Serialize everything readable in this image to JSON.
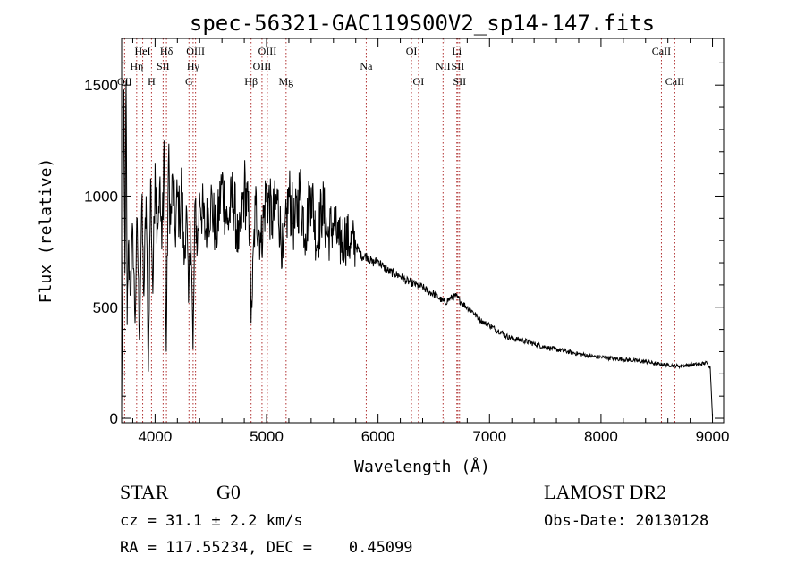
{
  "chart_data": {
    "type": "line",
    "title": "spec-56321-GAC119S00V2_sp14-147.fits",
    "xlabel": "Wavelength (Å)",
    "ylabel": "Flux (relative)",
    "xlim": [
      3700,
      9100
    ],
    "ylim": [
      -20,
      1710
    ],
    "x_ticks": [
      4000,
      5000,
      6000,
      7000,
      8000,
      9000
    ],
    "x_tick_labels": [
      "4000",
      "5000",
      "6000",
      "7000",
      "8000",
      "9000"
    ],
    "y_ticks": [
      0,
      500,
      1000,
      1500
    ],
    "y_tick_labels": [
      "0",
      "500",
      "1000",
      "1500"
    ],
    "grid": false,
    "line_color": "#000000",
    "marker_color": "#b03030",
    "series": [
      {
        "x": [
          3700,
          3710,
          3720,
          3730,
          3740,
          3750,
          3760,
          3780,
          3800,
          3820,
          3840,
          3860,
          3880,
          3900,
          3920,
          3940,
          3960,
          3980,
          4000,
          4020,
          4040,
          4060,
          4080,
          4100,
          4120,
          4140,
          4160,
          4180,
          4200,
          4220,
          4240,
          4260,
          4280,
          4300,
          4320,
          4340,
          4360,
          4380,
          4400,
          4450,
          4500,
          4550,
          4600,
          4650,
          4700,
          4750,
          4800,
          4850,
          4861,
          4900,
          4950,
          5000,
          5050,
          5100,
          5150,
          5200,
          5250,
          5300,
          5350,
          5400,
          5450,
          5500,
          5550,
          5600,
          5650,
          5700,
          5750,
          5800,
          5850,
          5900,
          5950,
          6000,
          6050,
          6100,
          6150,
          6200,
          6250,
          6300,
          6350,
          6400,
          6450,
          6500,
          6550,
          6600,
          6650,
          6700,
          6750,
          6800,
          6850,
          6900,
          6950,
          7000,
          7050,
          7100,
          7150,
          7200,
          7300,
          7400,
          7500,
          7600,
          7700,
          7800,
          7900,
          8000,
          8100,
          8200,
          8300,
          8400,
          8500,
          8600,
          8700,
          8800,
          8900,
          8950,
          8980,
          9000
        ],
        "y": [
          50,
          600,
          1480,
          650,
          1520,
          420,
          780,
          560,
          850,
          430,
          900,
          350,
          960,
          550,
          1000,
          210,
          1080,
          560,
          1150,
          880,
          1050,
          760,
          1250,
          300,
          1150,
          870,
          1080,
          820,
          1000,
          900,
          1060,
          690,
          960,
          520,
          890,
          310,
          980,
          760,
          1010,
          840,
          980,
          820,
          1060,
          870,
          1010,
          760,
          1040,
          870,
          430,
          960,
          790,
          1030,
          890,
          980,
          720,
          1010,
          860,
          1020,
          830,
          1040,
          780,
          960,
          820,
          880,
          780,
          820,
          790,
          780,
          730,
          730,
          700,
          710,
          680,
          660,
          650,
          640,
          620,
          610,
          600,
          590,
          570,
          560,
          540,
          520,
          540,
          550,
          520,
          500,
          480,
          450,
          430,
          420,
          400,
          390,
          370,
          360,
          350,
          335,
          320,
          310,
          300,
          290,
          280,
          275,
          270,
          265,
          260,
          255,
          245,
          240,
          235,
          240,
          245,
          250,
          230,
          10
        ]
      }
    ],
    "lines": [
      {
        "name": "OII",
        "x": 3727,
        "label_row": 3
      },
      {
        "name": "Hη",
        "x": 3835,
        "label_row": 2
      },
      {
        "name": "HeI",
        "x": 3889,
        "label_row": 1
      },
      {
        "name": "H",
        "x": 3968,
        "label_row": 3
      },
      {
        "name": "SII",
        "x": 4072,
        "label_row": 2
      },
      {
        "name": "Hδ",
        "x": 4102,
        "label_row": 1
      },
      {
        "name": "G",
        "x": 4304,
        "label_row": 3
      },
      {
        "name": "Hγ",
        "x": 4341,
        "label_row": 2
      },
      {
        "name": "OIII",
        "x": 4363,
        "label_row": 1
      },
      {
        "name": "Hβ",
        "x": 4861,
        "label_row": 3
      },
      {
        "name": "OIII",
        "x": 4959,
        "label_row": 2
      },
      {
        "name": "OIII",
        "x": 5007,
        "label_row": 1
      },
      {
        "name": "Mg",
        "x": 5175,
        "label_row": 3
      },
      {
        "name": "Na",
        "x": 5894,
        "label_row": 2
      },
      {
        "name": "OI",
        "x": 6300,
        "label_row": 1
      },
      {
        "name": "OI",
        "x": 6363,
        "label_row": 3
      },
      {
        "name": "NII",
        "x": 6583,
        "label_row": 2
      },
      {
        "name": "Li",
        "x": 6707,
        "label_row": 1
      },
      {
        "name": "SII",
        "x": 6716,
        "label_row": 2
      },
      {
        "name": "SII",
        "x": 6731,
        "label_row": 3
      },
      {
        "name": "CaII",
        "x": 8542,
        "label_row": 1
      },
      {
        "name": "CaII",
        "x": 8662,
        "label_row": 3
      }
    ]
  },
  "footer": {
    "class_label": "STAR",
    "subclass_label": "G0",
    "survey": "LAMOST DR2",
    "redshift": "cz = 31.1 ± 2.2 km/s",
    "obs_date": "Obs-Date: 20130128",
    "coordinates": "RA = 117.55234, DEC =    0.45099"
  }
}
